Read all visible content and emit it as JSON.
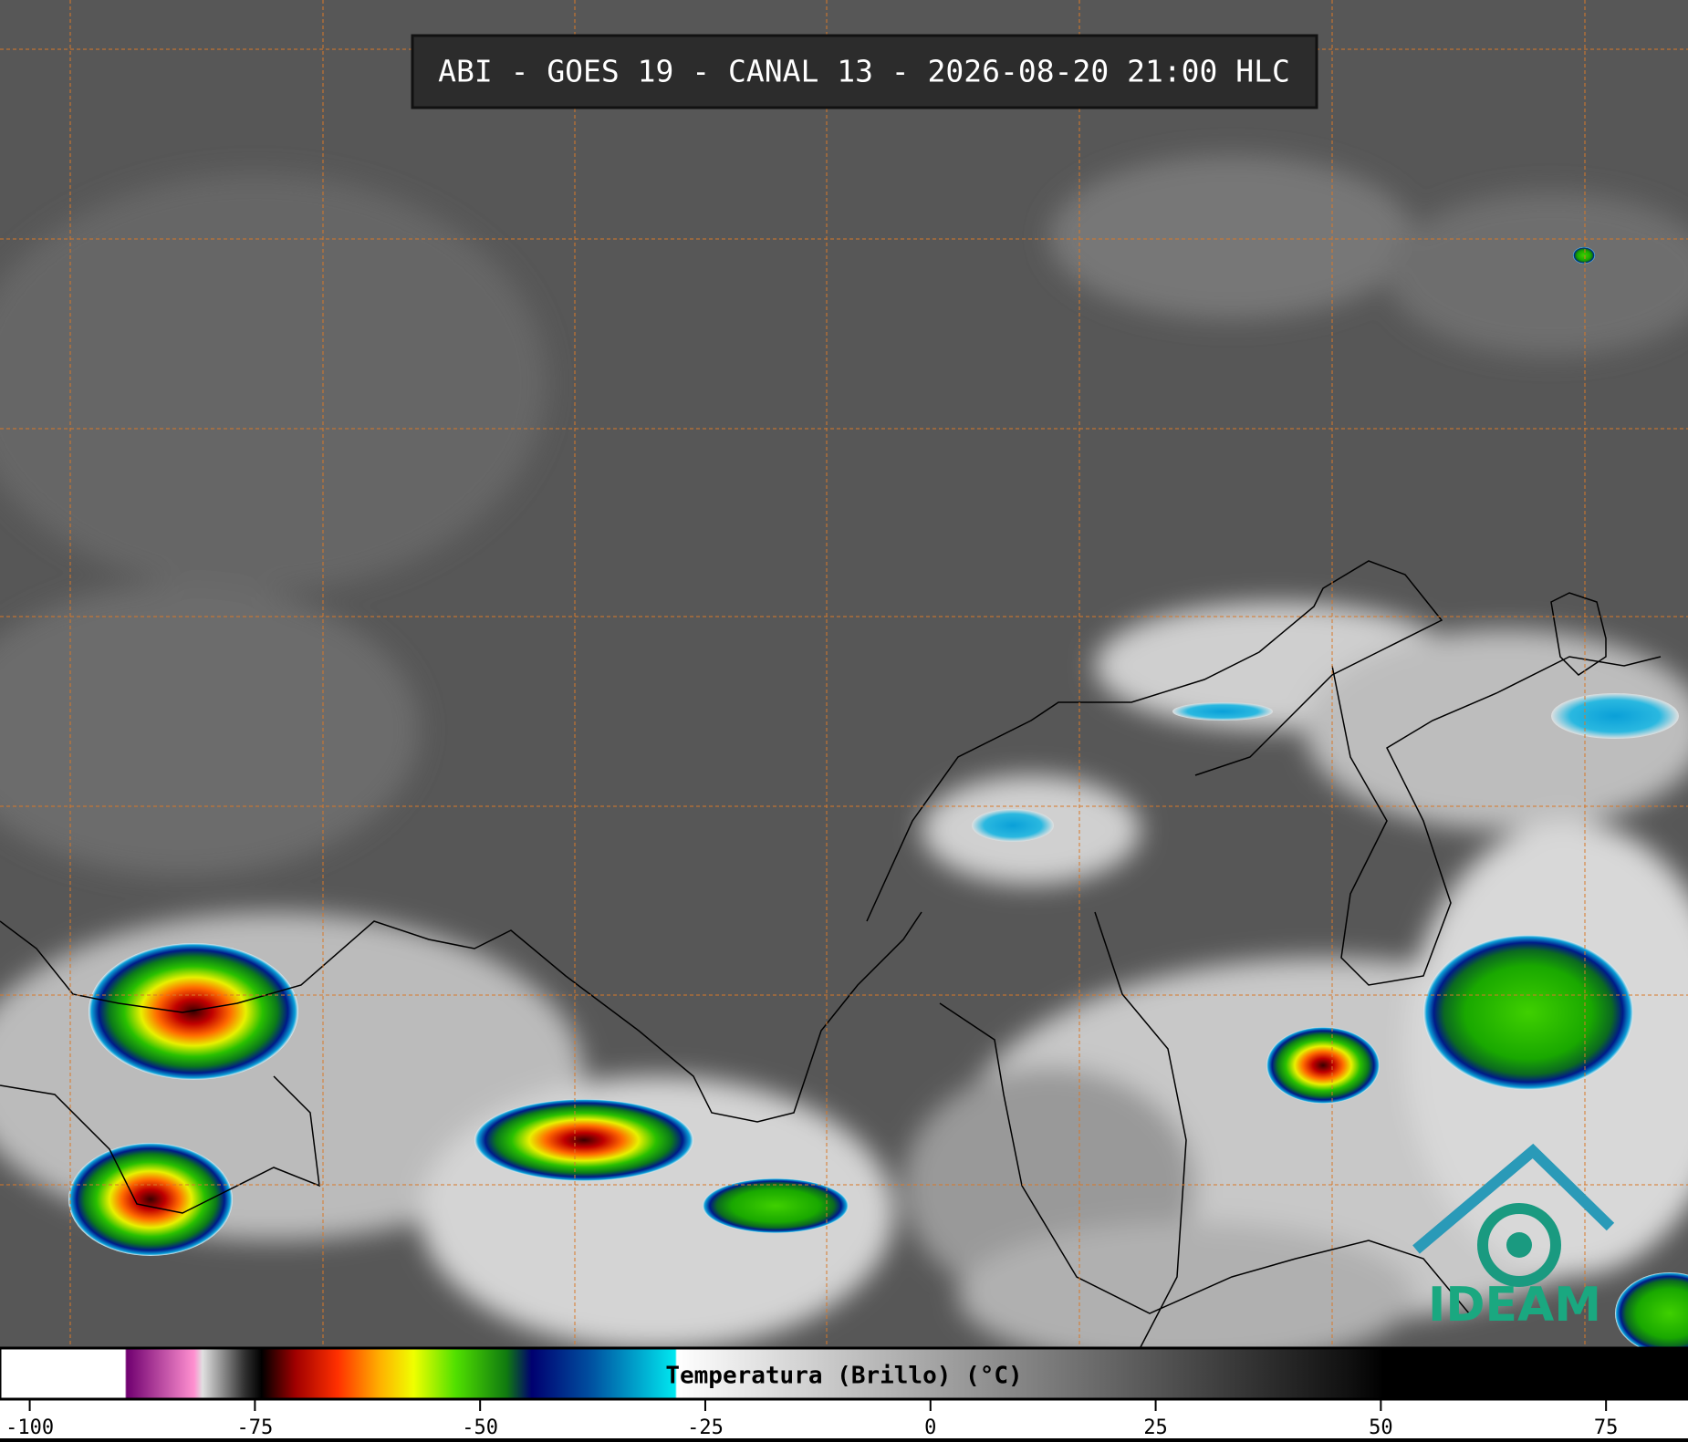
{
  "title": "ABI - GOES 19 - CANAL 13 - 2026-08-20 21:00 HLC",
  "logo": "IDEAM",
  "colorbar": {
    "label": "Temperatura (Brillo) (°C)",
    "range": [
      -103.3,
      84.1
    ],
    "ticks": [
      -100,
      -75,
      -50,
      -25,
      0,
      25,
      50,
      75
    ]
  }
}
